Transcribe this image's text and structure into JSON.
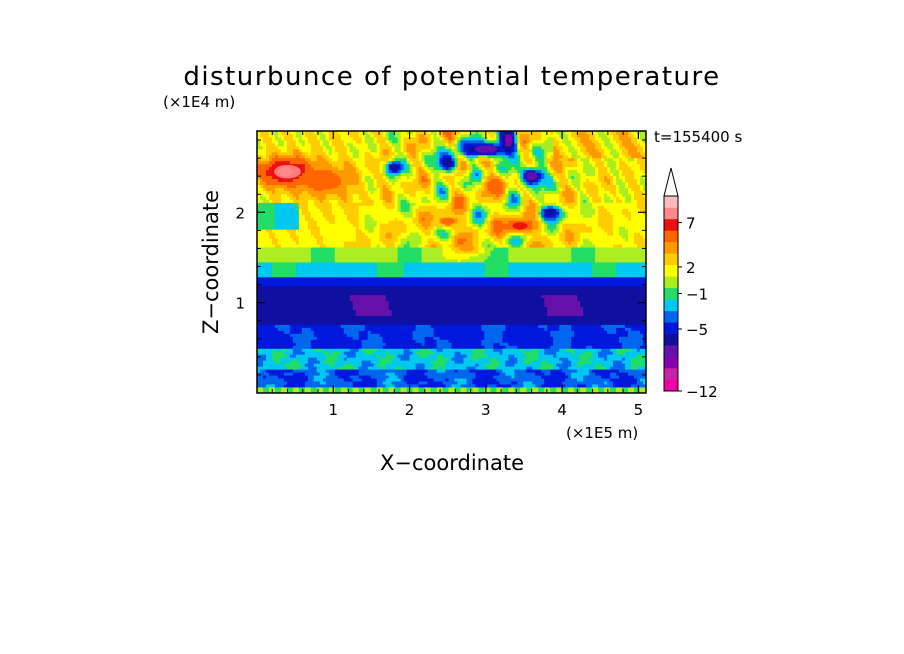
{
  "chart_data": {
    "type": "heatmap",
    "title": "disturbunce of potential temperature",
    "xlabel": "X−coordinate",
    "ylabel": "Z−coordinate",
    "x_unit": "(×1E5 m)",
    "y_unit": "(×1E4 m)",
    "time_label": "t=155400 s",
    "xlim": [
      0,
      5.1
    ],
    "ylim": [
      0,
      2.9
    ],
    "x_ticks": [
      1,
      2,
      3,
      4,
      5
    ],
    "y_ticks": [
      1,
      2
    ],
    "colorbar": {
      "levels": [
        -12,
        -11,
        -10,
        -9,
        -8,
        -7,
        -6,
        -5,
        -4,
        -3,
        -2,
        -1,
        0,
        1,
        2,
        3,
        4,
        5,
        6,
        7,
        8,
        9,
        10
      ],
      "tick_labels": [
        "−12",
        "−5",
        "−1",
        "2",
        "7"
      ],
      "tick_values": [
        -12,
        -5,
        -1,
        2,
        7
      ],
      "extend": "max"
    },
    "features": [
      {
        "x": 0.4,
        "z": 2.45,
        "value": 8.5,
        "width": 0.35,
        "height": 0.15
      },
      {
        "x": 0.9,
        "z": 2.35,
        "value": 4.5,
        "width": 0.4,
        "height": 0.2
      },
      {
        "x": 3.45,
        "z": 1.85,
        "value": 6,
        "width": 0.2,
        "height": 0.08
      },
      {
        "x": 2.5,
        "z": 1.9,
        "value": 4,
        "width": 0.18,
        "height": 0.08
      },
      {
        "x": 3.1,
        "z": 2.3,
        "value": 4.5,
        "width": 0.15,
        "height": 0.1
      },
      {
        "x": 2.75,
        "z": 1.6,
        "value": 3.5,
        "width": 0.2,
        "height": 0.07
      },
      {
        "x": 3.0,
        "z": 2.7,
        "value": -6,
        "width": 0.3,
        "height": 0.08
      },
      {
        "x": 3.3,
        "z": 2.8,
        "value": -7,
        "width": 0.1,
        "height": 0.12
      },
      {
        "x": 3.6,
        "z": 2.4,
        "value": -5.5,
        "width": 0.15,
        "height": 0.1
      },
      {
        "x": 2.5,
        "z": 2.55,
        "value": -5,
        "width": 0.12,
        "height": 0.1
      },
      {
        "x": 1.8,
        "z": 2.5,
        "value": -4,
        "width": 0.1,
        "height": 0.08
      },
      {
        "x": 3.85,
        "z": 2.0,
        "value": -4,
        "width": 0.15,
        "height": 0.08
      }
    ]
  }
}
